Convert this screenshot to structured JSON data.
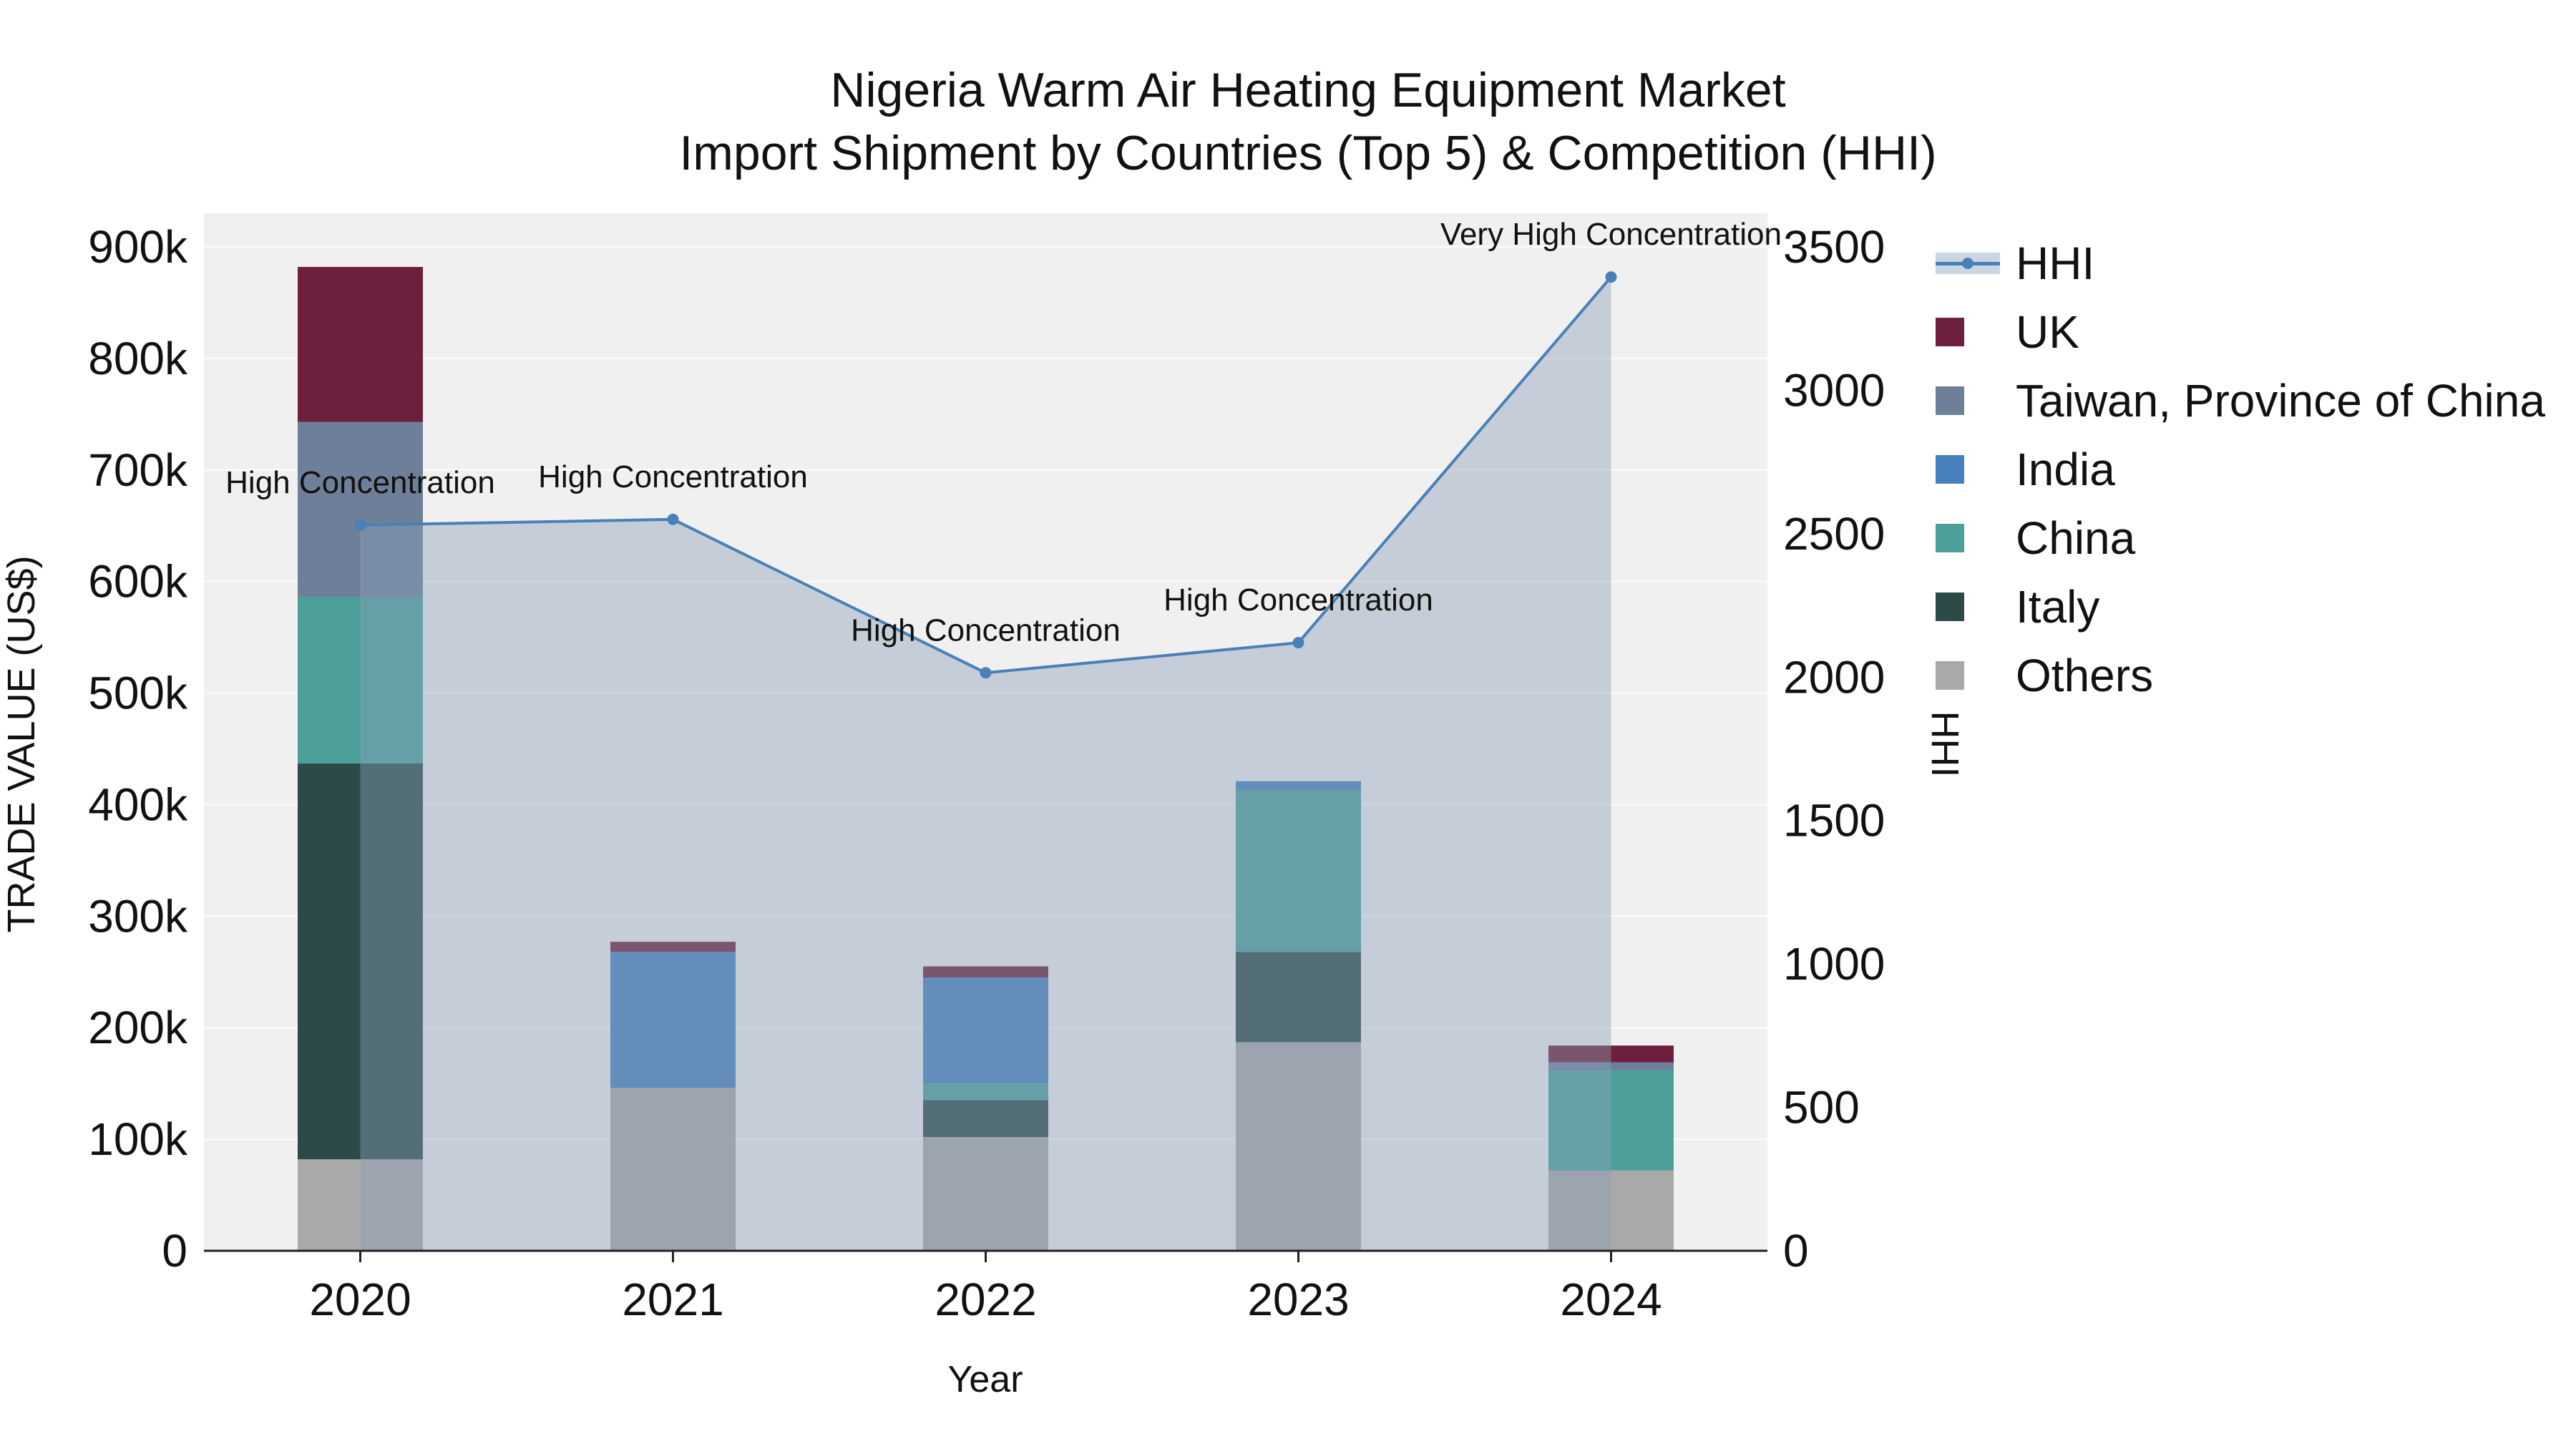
{
  "title": {
    "line1": "Nigeria Warm Air Heating Equipment Market",
    "line2": "Import Shipment by Countries (Top 5) & Competition (HHI)"
  },
  "axes": {
    "y_left_label": "TRADE VALUE (US$)",
    "y_right_label": "HHI",
    "x_label": "Year"
  },
  "chart_data": {
    "type": "bar",
    "subtype": "stacked-bars-with-line",
    "categories": [
      "2020",
      "2021",
      "2022",
      "2023",
      "2024"
    ],
    "bar_unit": "US$",
    "bar_series": [
      {
        "name": "Others",
        "color": "#a9a9a9",
        "values": [
          82000,
          146000,
          102000,
          187000,
          72000
        ]
      },
      {
        "name": "Italy",
        "color": "#2b4a48",
        "values": [
          355000,
          0,
          33000,
          81000,
          0
        ]
      },
      {
        "name": "China",
        "color": "#4d9f9a",
        "values": [
          149000,
          0,
          15000,
          145000,
          90000
        ]
      },
      {
        "name": "India",
        "color": "#4781bd",
        "values": [
          0,
          122000,
          95000,
          8000,
          0
        ]
      },
      {
        "name": "Taiwan, Province of China",
        "color": "#6e8099",
        "values": [
          157000,
          0,
          0,
          0,
          7000
        ]
      },
      {
        "name": "UK",
        "color": "#6d1f3d",
        "values": [
          139000,
          9000,
          10000,
          0,
          15000
        ]
      }
    ],
    "line_series": {
      "name": "HHI",
      "color": "#4a80b8",
      "area_fill": "#8aa0b8",
      "area_opacity": 0.42,
      "values": [
        2530,
        2550,
        2015,
        2120,
        3395
      ]
    },
    "annotations": [
      {
        "category": "2020",
        "text": "High Concentration"
      },
      {
        "category": "2021",
        "text": "High Concentration"
      },
      {
        "category": "2022",
        "text": "High Concentration"
      },
      {
        "category": "2023",
        "text": "High Concentration"
      },
      {
        "category": "2024",
        "text": "Very High Concentration"
      }
    ],
    "y_left": {
      "min": 0,
      "max": 900000,
      "tick_values": [
        0,
        100000,
        200000,
        300000,
        400000,
        500000,
        600000,
        700000,
        800000,
        900000
      ],
      "tick_labels": [
        "0",
        "100k",
        "200k",
        "300k",
        "400k",
        "500k",
        "600k",
        "700k",
        "800k",
        "900k"
      ]
    },
    "y_right": {
      "min": 0,
      "max": 3500,
      "tick_values": [
        0,
        500,
        1000,
        1500,
        2000,
        2500,
        3000,
        3500
      ],
      "tick_labels": [
        "0",
        "500",
        "1000",
        "1500",
        "2000",
        "2500",
        "3000",
        "3500"
      ]
    },
    "plot_background": "#f0f0f0",
    "grid_color": "#ffffff",
    "legend_position": "right"
  },
  "legend": {
    "items": [
      {
        "label": "HHI",
        "type": "line",
        "color": "#4a80b8",
        "band": "#ccd6e2"
      },
      {
        "label": "UK",
        "type": "square",
        "color": "#6d1f3d"
      },
      {
        "label": "Taiwan, Province of China",
        "type": "square",
        "color": "#6e8099"
      },
      {
        "label": "India",
        "type": "square",
        "color": "#4781bd"
      },
      {
        "label": "China",
        "type": "square",
        "color": "#4d9f9a"
      },
      {
        "label": "Italy",
        "type": "square",
        "color": "#2b4a48"
      },
      {
        "label": "Others",
        "type": "square",
        "color": "#a9a9a9"
      }
    ]
  }
}
